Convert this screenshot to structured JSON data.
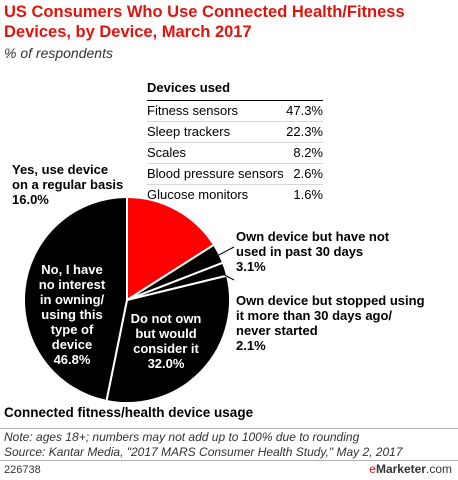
{
  "title": "US Consumers Who Use Connected Health/Fitness Devices, by Device, March 2017",
  "subtitle": "% of respondents",
  "chart_data": {
    "type": "pie",
    "title": "US Consumers Who Use Connected Health/Fitness Devices, by Device, March 2017",
    "xlabel": "Connected fitness/health device usage",
    "ylabel": "% of respondents",
    "slices": [
      {
        "label": "Yes, use device on a regular basis",
        "value": 16.0,
        "value_label": "16.0%",
        "color": "#ff0000"
      },
      {
        "label": "Own device but have not used in past 30 days",
        "value": 3.1,
        "value_label": "3.1%",
        "color": "#000000"
      },
      {
        "label": "Own device but stopped using it more than 30 days ago/ never started",
        "value": 2.1,
        "value_label": "2.1%",
        "color": "#000000"
      },
      {
        "label": "Do not own but would consider it",
        "value": 32.0,
        "value_label": "32.0%",
        "color": "#000000"
      },
      {
        "label": "No, I have no interest in owning/ using this type of device",
        "value": 46.8,
        "value_label": "46.8%",
        "color": "#000000"
      }
    ],
    "table": {
      "header": "Devices used",
      "rows": [
        {
          "label": "Fitness sensors",
          "value": "47.3%"
        },
        {
          "label": "Sleep trackers",
          "value": "22.3%"
        },
        {
          "label": "Scales",
          "value": "8.2%"
        },
        {
          "label": "Blood pressure sensors",
          "value": "2.6%"
        },
        {
          "label": "Glucose monitors",
          "value": "1.6%"
        }
      ]
    }
  },
  "labels": {
    "regular_line1": "Yes, use device",
    "regular_line2": "on a regular basis",
    "not30_line1": "Own device but have not",
    "not30_line2": "used in past 30 days",
    "stopped_line1": "Own device but stopped using",
    "stopped_line2": "it more than 30 days ago/",
    "stopped_line3": "never started",
    "noint_line1": "No, I have",
    "noint_line2": "no interest",
    "noint_line3": "in owning/",
    "noint_line4": "using this",
    "noint_line5": "type of",
    "noint_line6": "device",
    "consider_line1": "Do not own",
    "consider_line2": "but would",
    "consider_line3": "consider it"
  },
  "chart_label": "Connected fitness/health device usage",
  "note": "Note: ages 18+; numbers may not add up to 100% due to rounding",
  "source": "Source: Kantar Media, \"2017 MARS Consumer Health Study,\" May 2, 2017",
  "footer_id": "226738",
  "brand_prefix": "e",
  "brand_name": "Marketer",
  "brand_suffix": ".com",
  "colors": {
    "accent": "#e0140f",
    "slice_red": "#ff0000",
    "slice_black": "#000000"
  }
}
